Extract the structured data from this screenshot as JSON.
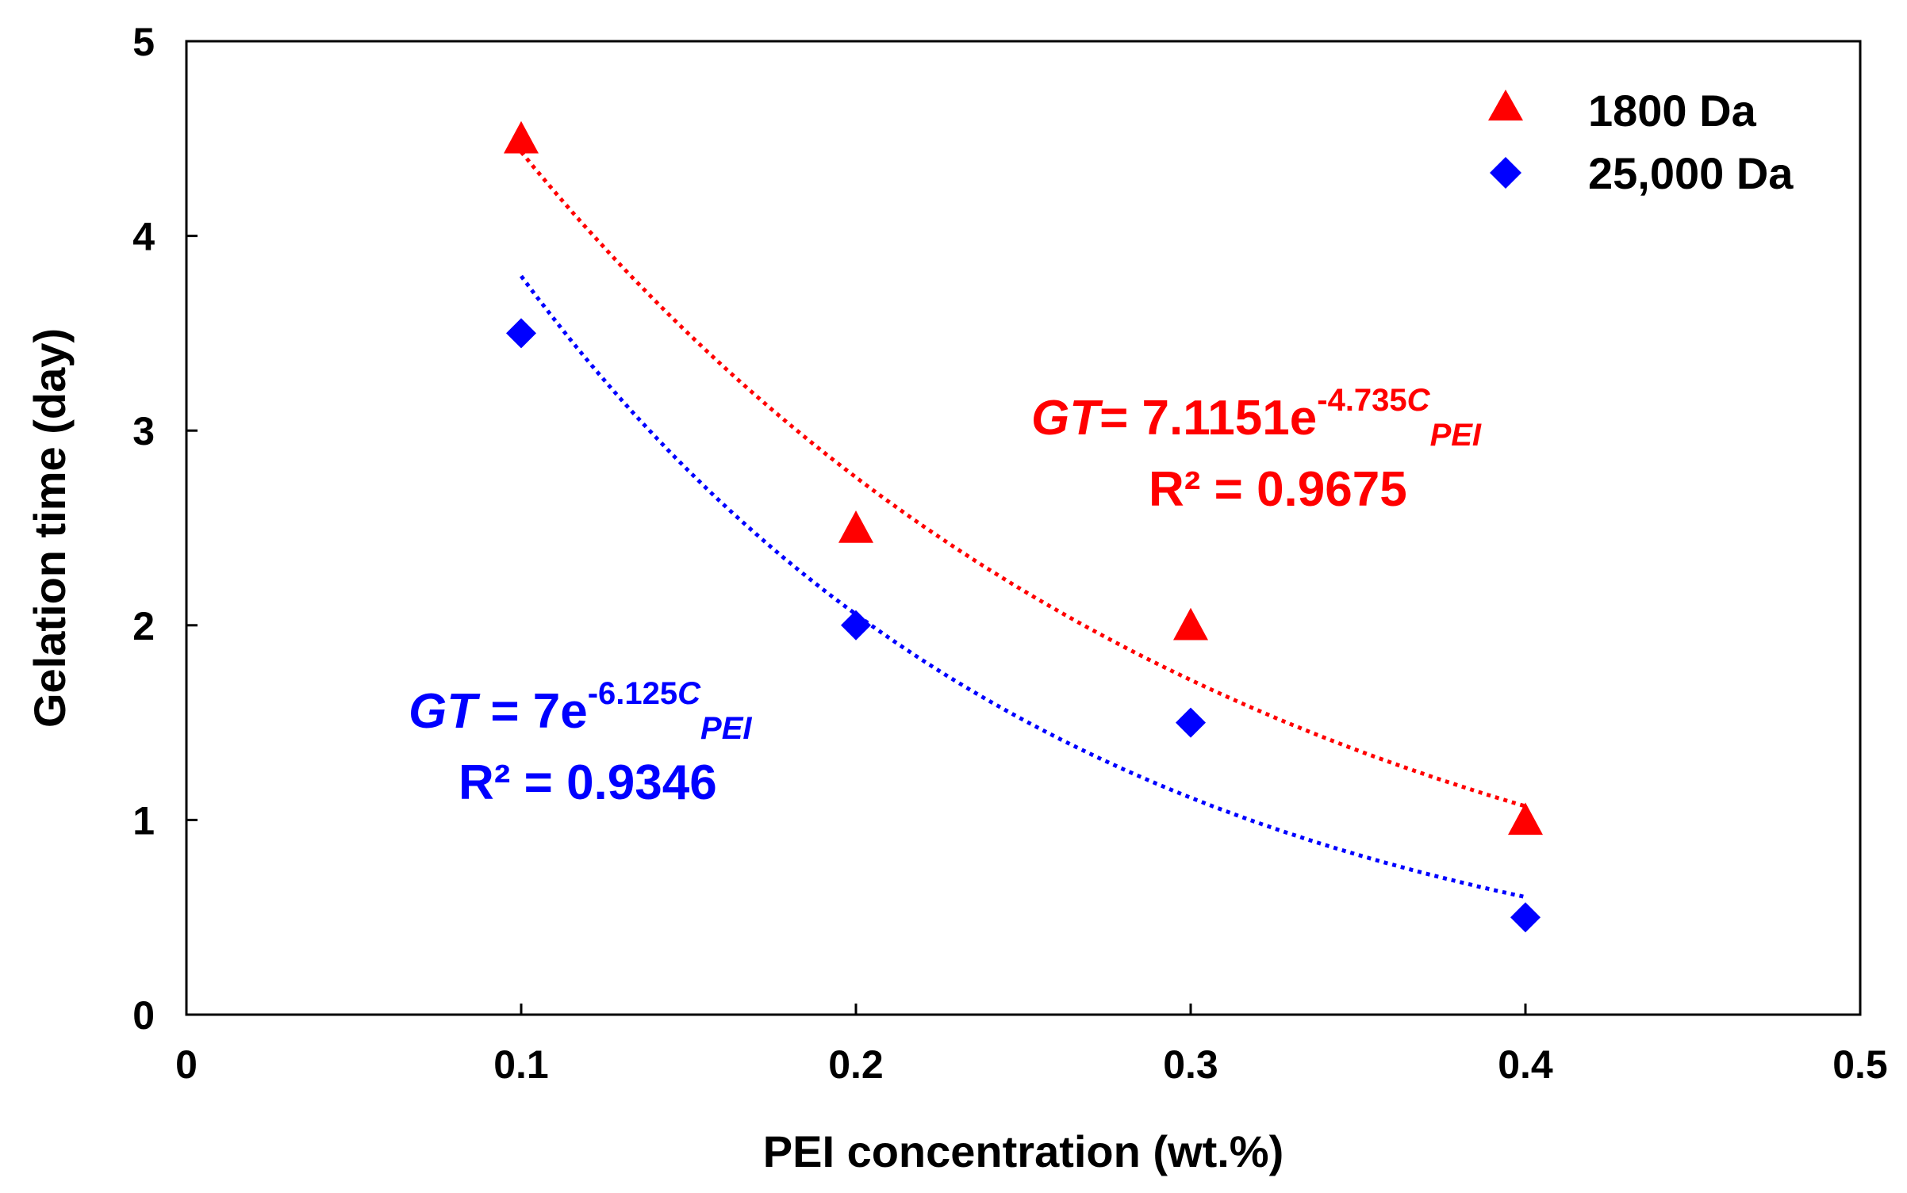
{
  "chart_data": {
    "type": "scatter",
    "title": "",
    "xlabel": "PEI concentration (wt.%)",
    "ylabel": "Gelation time (day)",
    "xlim": [
      0,
      0.5
    ],
    "ylim": [
      0,
      5
    ],
    "xticks": [
      0,
      0.1,
      0.2,
      0.3,
      0.4,
      0.5
    ],
    "xtick_labels": [
      "0",
      "0.1",
      "0.2",
      "0.3",
      "0.4",
      "0.5"
    ],
    "yticks": [
      0,
      1,
      2,
      3,
      4,
      5
    ],
    "ytick_labels": [
      "0",
      "1",
      "2",
      "3",
      "4",
      "5"
    ],
    "grid": false,
    "legend_position": "top-right",
    "series": [
      {
        "name": "1800 Da",
        "marker": "triangle",
        "color": "#ff0000",
        "x": [
          0.1,
          0.2,
          0.3,
          0.4
        ],
        "y": [
          4.5,
          2.5,
          2.0,
          1.0
        ],
        "trendline": {
          "type": "exponential",
          "a": 7.1151,
          "b": -4.735,
          "x_range": [
            0.1,
            0.4
          ],
          "style": "dotted"
        },
        "equation": {
          "gt": "GT",
          "mid": "= 7.1151e",
          "exp": "-4.735",
          "c": "C",
          "sub": "PEI",
          "r2": "R² = 0.9675"
        }
      },
      {
        "name": "25,000 Da",
        "marker": "diamond",
        "color": "#0000ff",
        "x": [
          0.1,
          0.2,
          0.3,
          0.4
        ],
        "y": [
          3.5,
          2.0,
          1.5,
          0.5
        ],
        "trendline": {
          "type": "exponential",
          "a": 7.0,
          "b": -6.125,
          "x_range": [
            0.1,
            0.4
          ],
          "style": "dotted"
        },
        "equation": {
          "gt": "GT",
          "mid": " = 7e",
          "exp": "-6.125",
          "c": "C",
          "sub": "PEI",
          "r2": "R² = 0.9346"
        }
      }
    ]
  }
}
